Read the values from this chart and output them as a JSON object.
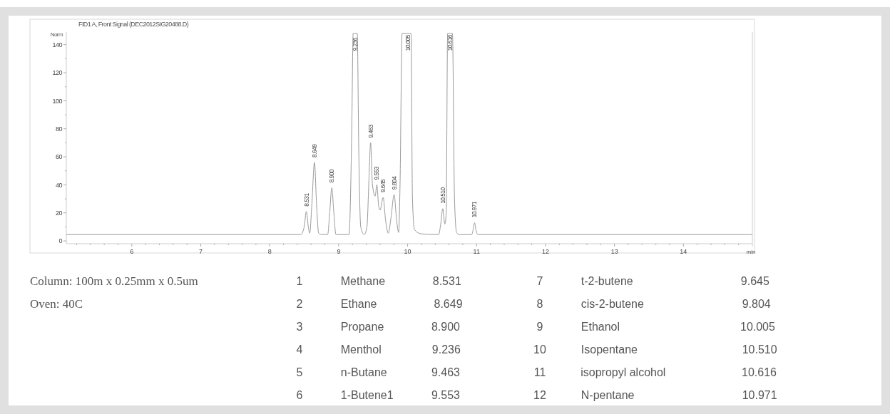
{
  "chart_data": [
    {
      "type": "line",
      "title": "FID1 A, Front Signal (DEC2012SIG20488.D)",
      "ylabel": "Norm",
      "xlabel": "min",
      "series": [
        {
          "color": "#9a9a9a",
          "x": [
            5.05,
            8.45,
            8.5,
            8.531,
            8.56,
            8.58,
            8.61,
            8.649,
            8.68,
            8.71,
            8.75,
            8.84,
            8.87,
            8.9,
            8.93,
            8.96,
            9.15,
            9.19,
            9.21,
            9.27,
            9.29,
            9.32,
            9.37,
            9.41,
            9.44,
            9.463,
            9.49,
            9.53,
            9.553,
            9.58,
            9.6,
            9.645,
            9.68,
            9.72,
            9.76,
            9.804,
            9.84,
            9.87,
            9.89,
            9.92,
            10.05,
            10.07,
            10.1,
            10.2,
            10.45,
            10.48,
            10.51,
            10.54,
            10.56,
            10.58,
            10.65,
            10.68,
            10.71,
            10.75,
            10.93,
            10.95,
            10.971,
            10.99,
            11.02,
            15
          ],
          "values": [
            4.5,
            4.5,
            10,
            21,
            10,
            5.5,
            25,
            56,
            25,
            5.5,
            4.5,
            4.5,
            20,
            38,
            20,
            4.5,
            4.5,
            80,
            148,
            148,
            70,
            10,
            4.5,
            10,
            45,
            70,
            40,
            32,
            40,
            25,
            22,
            31,
            15,
            5.5,
            17,
            33,
            15,
            6,
            40,
            148,
            148,
            30,
            8,
            5,
            4.5,
            12,
            23,
            12,
            20,
            148,
            148,
            30,
            6,
            4.5,
            4.5,
            8,
            13,
            8,
            4.5,
            4.5
          ]
        }
      ],
      "xlim": [
        5.05,
        15
      ],
      "ylim": [
        -2,
        149
      ],
      "xticks": [
        {
          "value": 5.2,
          "label": null
        },
        {
          "value": 5.4,
          "label": null
        },
        {
          "value": 5.6,
          "label": null
        },
        {
          "value": 5.8,
          "label": null
        },
        6,
        {
          "value": 6.2,
          "label": null
        },
        {
          "value": 6.4,
          "label": null
        },
        {
          "value": 6.6,
          "label": null
        },
        {
          "value": 6.8,
          "label": null
        },
        7,
        {
          "value": 7.2,
          "label": null
        },
        {
          "value": 7.4,
          "label": null
        },
        {
          "value": 7.6,
          "label": null
        },
        {
          "value": 7.8,
          "label": null
        },
        8,
        {
          "value": 8.2,
          "label": null
        },
        {
          "value": 8.4,
          "label": null
        },
        {
          "value": 8.6,
          "label": null
        },
        {
          "value": 8.8,
          "label": null
        },
        9,
        {
          "value": 9.2,
          "label": null
        },
        {
          "value": 9.4,
          "label": null
        },
        {
          "value": 9.6,
          "label": null
        },
        {
          "value": 9.8,
          "label": null
        },
        10,
        {
          "value": 10.2,
          "label": null
        },
        {
          "value": 10.4,
          "label": null
        },
        {
          "value": 10.6,
          "label": null
        },
        {
          "value": 10.8,
          "label": null
        },
        11,
        {
          "value": 11.2,
          "label": null
        },
        {
          "value": 11.4,
          "label": null
        },
        {
          "value": 11.6,
          "label": null
        },
        {
          "value": 11.8,
          "label": null
        },
        12,
        {
          "value": 12.2,
          "label": null
        },
        {
          "value": 12.4,
          "label": null
        },
        {
          "value": 12.6,
          "label": null
        },
        {
          "value": 12.8,
          "label": null
        },
        13,
        {
          "value": 13.2,
          "label": null
        },
        {
          "value": 13.4,
          "label": null
        },
        {
          "value": 13.6,
          "label": null
        },
        {
          "value": 13.8,
          "label": null
        },
        14,
        {
          "value": 14.2,
          "label": null
        },
        {
          "value": 14.4,
          "label": null
        },
        {
          "value": 14.6,
          "label": null
        },
        {
          "value": 14.8,
          "label": null
        }
      ],
      "yticks": [
        0,
        {
          "value": 10,
          "label": null
        },
        20,
        {
          "value": 30,
          "label": null
        },
        40,
        {
          "value": 50,
          "label": null
        },
        60,
        {
          "value": 70,
          "label": null
        },
        80,
        {
          "value": 90,
          "label": null
        },
        100,
        {
          "value": 110,
          "label": null
        },
        120,
        {
          "value": 130,
          "label": null
        },
        140
      ],
      "grid": false,
      "line_style": "solid",
      "marker": "none",
      "annotations": [
        {
          "text": "8.531",
          "x": 8.531,
          "y": 21
        },
        {
          "text": "8.649",
          "x": 8.649,
          "y": 56
        },
        {
          "text": "8.900",
          "x": 8.9,
          "y": 38
        },
        {
          "text": "9.236",
          "x": 9.236,
          "y": 132
        },
        {
          "text": "9.463",
          "x": 9.463,
          "y": 70
        },
        {
          "text": "9.553",
          "x": 9.553,
          "y": 40
        },
        {
          "text": "9.645",
          "x": 9.645,
          "y": 31
        },
        {
          "text": "9.804",
          "x": 9.804,
          "y": 33
        },
        {
          "text": "10.005",
          "x": 10.005,
          "y": 132
        },
        {
          "text": "10.510",
          "x": 10.51,
          "y": 23
        },
        {
          "text": "10.616",
          "x": 10.616,
          "y": 132
        },
        {
          "text": "10.971",
          "x": 10.971,
          "y": 13
        }
      ]
    },
    {
      "type": "other",
      "annotations": [
        "Column: 100m x 0.25mm x 0.5um",
        "Oven: 40C"
      ]
    },
    {
      "type": "other",
      "annotations": [
        "1 Methane 8.531",
        "7 t-2-butene 9.645",
        "2 Ethane 8.649",
        "8 cis-2-butene 9.804",
        "3 Propane 8.900",
        "9 Ethanol 10.005",
        "4 Menthol 9.236",
        "10 Isopentane 10.510",
        "5 n-Butane 9.463",
        "11 isopropyl alcohol 10.616",
        "6 1-Butene1 9.553",
        "12 N-pentane 10.971"
      ]
    }
  ]
}
